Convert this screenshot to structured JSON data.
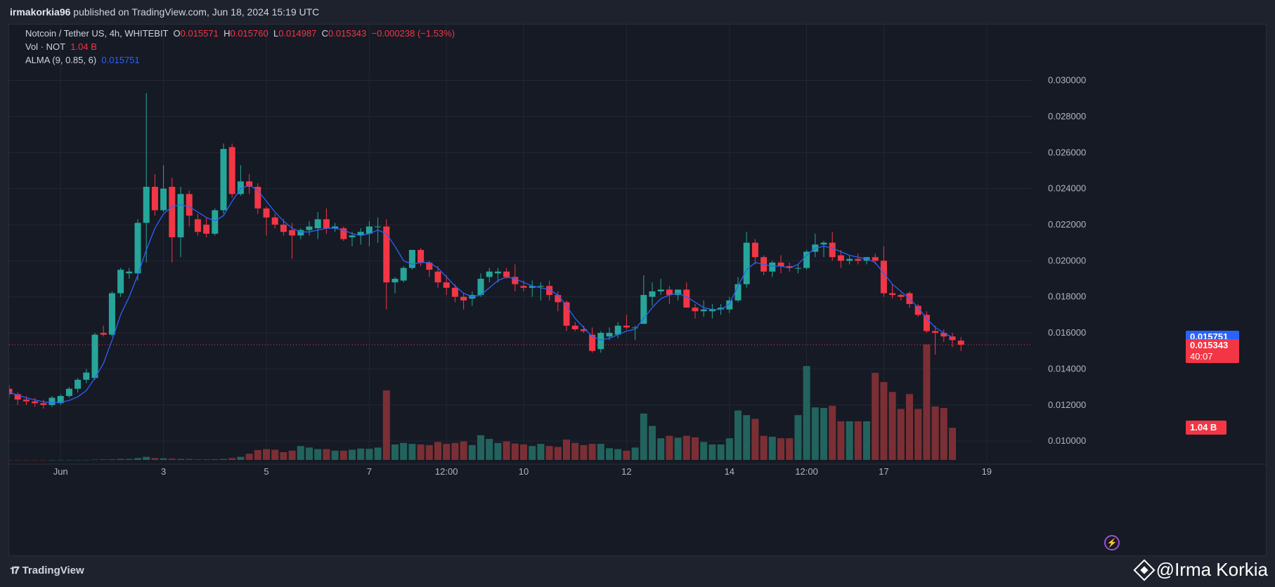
{
  "header": {
    "publisher": "irmakorkia96",
    "published_text": "published on TradingView.com, Jun 18, 2024 15:19 UTC"
  },
  "legend": {
    "symbol": "Notcoin / Tether US, 4h, WHITEBIT",
    "o_label": "O",
    "o_value": "0.015571",
    "h_label": "H",
    "h_value": "0.015760",
    "l_label": "L",
    "l_value": "0.014987",
    "c_label": "C",
    "c_value": "0.015343",
    "change": "−0.000238 (−1.53%)",
    "vol_label": "Vol · NOT",
    "vol_value": "1.04 B",
    "alma_label": "ALMA (9, 0.85, 6)",
    "alma_value": "0.015751"
  },
  "price_labels": {
    "alma": "0.015751",
    "last": "0.015343",
    "countdown": "40:07",
    "volume": "1.04 B"
  },
  "footer": {
    "brand": "TradingView",
    "brand_icon": "tradingview-logo-icon",
    "watermark": "@Irma Korkia",
    "watermark_icon": "binance-diamond-icon"
  },
  "colors": {
    "up": "#26a69a",
    "down": "#f23645",
    "alma": "#2962ff",
    "up_volume": "#22635d",
    "down_volume": "#7b2f35",
    "background": "#161a25",
    "grid": "#232733"
  },
  "chart_data": {
    "type": "candlestick",
    "title": "Notcoin / Tether US, 4h, WHITEBIT",
    "ylim": [
      0.0095,
      0.0315
    ],
    "y_ticks": [
      "0.030000",
      "0.028000",
      "0.026000",
      "0.024000",
      "0.022000",
      "0.020000",
      "0.018000",
      "0.016000",
      "0.014000",
      "0.012000",
      "0.010000"
    ],
    "x_ticks": [
      {
        "label": "Jun",
        "index": 6
      },
      {
        "label": "3",
        "index": 18
      },
      {
        "label": "5",
        "index": 30
      },
      {
        "label": "7",
        "index": 42
      },
      {
        "label": "12:00",
        "index": 51
      },
      {
        "label": "10",
        "index": 60
      },
      {
        "label": "12",
        "index": 72
      },
      {
        "label": "14",
        "index": 84
      },
      {
        "label": "12:00",
        "index": 93
      },
      {
        "label": "17",
        "index": 102
      },
      {
        "label": "19",
        "index": 114
      }
    ],
    "grid": true,
    "candles": [
      [
        0.0129,
        0.0131,
        0.0124,
        0.0126
      ],
      [
        0.0126,
        0.0127,
        0.012,
        0.0123
      ],
      [
        0.0123,
        0.0125,
        0.012,
        0.0122
      ],
      [
        0.0122,
        0.0124,
        0.0119,
        0.0121
      ],
      [
        0.0121,
        0.0123,
        0.0118,
        0.012
      ],
      [
        0.012,
        0.0125,
        0.0119,
        0.0124
      ],
      [
        0.0121,
        0.0126,
        0.012,
        0.0125
      ],
      [
        0.0125,
        0.013,
        0.0124,
        0.0129
      ],
      [
        0.0129,
        0.0135,
        0.0127,
        0.0134
      ],
      [
        0.0134,
        0.014,
        0.0132,
        0.0138
      ],
      [
        0.0135,
        0.016,
        0.0134,
        0.0159
      ],
      [
        0.016,
        0.0164,
        0.0158,
        0.0159
      ],
      [
        0.0159,
        0.0183,
        0.0158,
        0.0182
      ],
      [
        0.0182,
        0.0196,
        0.018,
        0.0195
      ],
      [
        0.0193,
        0.0196,
        0.019,
        0.0194
      ],
      [
        0.0193,
        0.0223,
        0.0189,
        0.0221
      ],
      [
        0.0221,
        0.0293,
        0.0199,
        0.0241
      ],
      [
        0.0241,
        0.0248,
        0.0225,
        0.0228
      ],
      [
        0.0228,
        0.0253,
        0.0227,
        0.024
      ],
      [
        0.0241,
        0.0246,
        0.0199,
        0.0213
      ],
      [
        0.0213,
        0.0241,
        0.0202,
        0.0237
      ],
      [
        0.0237,
        0.0239,
        0.0219,
        0.0225
      ],
      [
        0.0223,
        0.0226,
        0.0214,
        0.0216
      ],
      [
        0.022,
        0.0224,
        0.0213,
        0.0215
      ],
      [
        0.0215,
        0.0229,
        0.0214,
        0.0228
      ],
      [
        0.0228,
        0.0265,
        0.0226,
        0.0262
      ],
      [
        0.0263,
        0.0265,
        0.0235,
        0.0237
      ],
      [
        0.0237,
        0.0253,
        0.0236,
        0.0244
      ],
      [
        0.0244,
        0.0248,
        0.0237,
        0.0241
      ],
      [
        0.0241,
        0.0243,
        0.0226,
        0.0229
      ],
      [
        0.0229,
        0.023,
        0.0214,
        0.0224
      ],
      [
        0.0224,
        0.0226,
        0.0218,
        0.022
      ],
      [
        0.022,
        0.0223,
        0.0214,
        0.0216
      ],
      [
        0.0217,
        0.0221,
        0.0201,
        0.0214
      ],
      [
        0.0214,
        0.0218,
        0.0212,
        0.0217
      ],
      [
        0.0217,
        0.0222,
        0.0214,
        0.0219
      ],
      [
        0.0218,
        0.0227,
        0.0212,
        0.0223
      ],
      [
        0.0223,
        0.0229,
        0.0215,
        0.0218
      ],
      [
        0.0218,
        0.0221,
        0.0216,
        0.0219
      ],
      [
        0.0218,
        0.0219,
        0.0211,
        0.0212
      ],
      [
        0.0213,
        0.0216,
        0.0208,
        0.0214
      ],
      [
        0.0214,
        0.0218,
        0.0209,
        0.0216
      ],
      [
        0.0215,
        0.0222,
        0.0208,
        0.0219
      ],
      [
        0.0219,
        0.0224,
        0.021,
        0.0219
      ],
      [
        0.0219,
        0.0223,
        0.0173,
        0.0188
      ],
      [
        0.0188,
        0.0191,
        0.0182,
        0.019
      ],
      [
        0.0189,
        0.0197,
        0.0188,
        0.0196
      ],
      [
        0.0196,
        0.0206,
        0.0195,
        0.0206
      ],
      [
        0.0206,
        0.0207,
        0.0197,
        0.0199
      ],
      [
        0.0199,
        0.02,
        0.0191,
        0.0195
      ],
      [
        0.0194,
        0.0197,
        0.0185,
        0.0188
      ],
      [
        0.0188,
        0.0192,
        0.0181,
        0.0185
      ],
      [
        0.0185,
        0.0187,
        0.0177,
        0.018
      ],
      [
        0.018,
        0.0182,
        0.0173,
        0.0178
      ],
      [
        0.0179,
        0.0183,
        0.0175,
        0.0181
      ],
      [
        0.0181,
        0.0193,
        0.018,
        0.019
      ],
      [
        0.0191,
        0.0196,
        0.0188,
        0.0194
      ],
      [
        0.0193,
        0.0196,
        0.0188,
        0.0194
      ],
      [
        0.0194,
        0.0196,
        0.019,
        0.0191
      ],
      [
        0.0191,
        0.0198,
        0.0183,
        0.0187
      ],
      [
        0.0186,
        0.0189,
        0.0183,
        0.0185
      ],
      [
        0.0185,
        0.0189,
        0.018,
        0.0186
      ],
      [
        0.0186,
        0.0188,
        0.0178,
        0.0186
      ],
      [
        0.0186,
        0.0189,
        0.0178,
        0.0181
      ],
      [
        0.0181,
        0.0183,
        0.0172,
        0.0177
      ],
      [
        0.0177,
        0.0178,
        0.0161,
        0.0164
      ],
      [
        0.0164,
        0.0166,
        0.0161,
        0.0162
      ],
      [
        0.0162,
        0.0164,
        0.016,
        0.0161
      ],
      [
        0.0159,
        0.0163,
        0.0149,
        0.015
      ],
      [
        0.0151,
        0.0161,
        0.0149,
        0.016
      ],
      [
        0.0158,
        0.0163,
        0.0156,
        0.016
      ],
      [
        0.0159,
        0.0166,
        0.0157,
        0.0164
      ],
      [
        0.0164,
        0.017,
        0.0162,
        0.0163
      ],
      [
        0.0163,
        0.0164,
        0.0156,
        0.0163
      ],
      [
        0.0165,
        0.0192,
        0.0165,
        0.0181
      ],
      [
        0.018,
        0.0188,
        0.0175,
        0.0183
      ],
      [
        0.0183,
        0.019,
        0.0181,
        0.0184
      ],
      [
        0.0184,
        0.0186,
        0.0176,
        0.0181
      ],
      [
        0.0181,
        0.0184,
        0.0178,
        0.0184
      ],
      [
        0.0184,
        0.0188,
        0.0176,
        0.0174
      ],
      [
        0.0174,
        0.0176,
        0.0168,
        0.0172
      ],
      [
        0.0172,
        0.0178,
        0.0169,
        0.0173
      ],
      [
        0.0172,
        0.0176,
        0.0168,
        0.0173
      ],
      [
        0.0173,
        0.0176,
        0.017,
        0.0174
      ],
      [
        0.0173,
        0.018,
        0.0171,
        0.0178
      ],
      [
        0.0178,
        0.0191,
        0.0177,
        0.0187
      ],
      [
        0.0187,
        0.0216,
        0.0185,
        0.021
      ],
      [
        0.021,
        0.0212,
        0.0198,
        0.0202
      ],
      [
        0.0202,
        0.0203,
        0.0192,
        0.0194
      ],
      [
        0.0194,
        0.02,
        0.0191,
        0.0199
      ],
      [
        0.0199,
        0.0203,
        0.0193,
        0.0197
      ],
      [
        0.0197,
        0.0199,
        0.0194,
        0.0196
      ],
      [
        0.0196,
        0.0198,
        0.0193,
        0.0196
      ],
      [
        0.0196,
        0.0206,
        0.0195,
        0.0205
      ],
      [
        0.0205,
        0.0215,
        0.0202,
        0.0209
      ],
      [
        0.0209,
        0.0211,
        0.0202,
        0.021
      ],
      [
        0.021,
        0.0216,
        0.02,
        0.0202
      ],
      [
        0.0203,
        0.0206,
        0.0196,
        0.02
      ],
      [
        0.02,
        0.0203,
        0.0198,
        0.0201
      ],
      [
        0.0201,
        0.0204,
        0.0198,
        0.02
      ],
      [
        0.02,
        0.0202,
        0.0198,
        0.0202
      ],
      [
        0.0202,
        0.0204,
        0.0198,
        0.02
      ],
      [
        0.02,
        0.0208,
        0.018,
        0.0182
      ],
      [
        0.0182,
        0.0187,
        0.0179,
        0.0181
      ],
      [
        0.0181,
        0.0182,
        0.0178,
        0.018
      ],
      [
        0.0182,
        0.0183,
        0.0174,
        0.0176
      ],
      [
        0.0175,
        0.0176,
        0.0169,
        0.017
      ],
      [
        0.017,
        0.0172,
        0.016,
        0.0161
      ],
      [
        0.0161,
        0.0164,
        0.0148,
        0.016
      ],
      [
        0.016,
        0.0162,
        0.0155,
        0.0158
      ],
      [
        0.0158,
        0.016,
        0.0152,
        0.0156
      ],
      [
        0.01557,
        0.01576,
        0.01499,
        0.01534
      ]
    ],
    "volume": [
      0.0,
      0.0,
      0.0,
      0.0,
      0.0,
      0.0,
      0.0,
      0.0,
      0.0,
      0.0,
      0.01,
      0.02,
      0.02,
      0.03,
      0.03,
      0.06,
      0.1,
      0.06,
      0.05,
      0.04,
      0.03,
      0.03,
      0.02,
      0.02,
      0.02,
      0.03,
      0.06,
      0.1,
      0.2,
      0.32,
      0.35,
      0.33,
      0.25,
      0.3,
      0.45,
      0.4,
      0.35,
      0.35,
      0.3,
      0.3,
      0.33,
      0.37,
      0.36,
      0.4,
      2.25,
      0.5,
      0.55,
      0.52,
      0.5,
      0.48,
      0.58,
      0.52,
      0.55,
      0.6,
      0.48,
      0.8,
      0.68,
      0.55,
      0.6,
      0.53,
      0.5,
      0.45,
      0.52,
      0.45,
      0.42,
      0.66,
      0.55,
      0.48,
      0.52,
      0.52,
      0.38,
      0.35,
      0.3,
      0.4,
      1.5,
      1.1,
      0.7,
      0.78,
      0.72,
      0.78,
      0.73,
      0.58,
      0.5,
      0.5,
      0.7,
      1.6,
      1.45,
      1.33,
      0.78,
      0.75,
      0.7,
      0.7,
      1.45,
      3.04,
      1.7,
      1.68,
      1.75,
      1.25,
      1.25,
      1.25,
      1.25,
      2.82,
      2.52,
      2.2,
      1.65,
      2.13,
      1.65,
      3.74,
      1.73,
      1.68,
      1.04
    ],
    "alma": [
      0.0127,
      0.01255,
      0.0124,
      0.01228,
      0.01218,
      0.01212,
      0.01215,
      0.01225,
      0.01245,
      0.0128,
      0.0135,
      0.0143,
      0.0156,
      0.017,
      0.018,
      0.0192,
      0.0206,
      0.0218,
      0.0226,
      0.023,
      0.0231,
      0.023,
      0.0227,
      0.0224,
      0.0222,
      0.0225,
      0.0233,
      0.024,
      0.0242,
      0.0239,
      0.0233,
      0.0227,
      0.0222,
      0.0218,
      0.0216,
      0.0216,
      0.0217,
      0.0218,
      0.0218,
      0.0217,
      0.0215,
      0.0214,
      0.0215,
      0.0217,
      0.0215,
      0.0208,
      0.02,
      0.0198,
      0.0199,
      0.0199,
      0.0196,
      0.0191,
      0.0186,
      0.0182,
      0.018,
      0.0181,
      0.0185,
      0.0189,
      0.0191,
      0.019,
      0.0188,
      0.0186,
      0.0185,
      0.0184,
      0.0181,
      0.0175,
      0.0168,
      0.0163,
      0.0158,
      0.0156,
      0.0157,
      0.0159,
      0.0161,
      0.0162,
      0.0168,
      0.0174,
      0.0179,
      0.0181,
      0.0182,
      0.018,
      0.0177,
      0.0174,
      0.0173,
      0.0173,
      0.0176,
      0.0186,
      0.0195,
      0.0199,
      0.0198,
      0.0197,
      0.0197,
      0.0196,
      0.0198,
      0.0203,
      0.0207,
      0.0208,
      0.0207,
      0.0205,
      0.0203,
      0.0202,
      0.0201,
      0.0199,
      0.0193,
      0.0187,
      0.0183,
      0.0179,
      0.0174,
      0.0168,
      0.0163,
      0.016,
      0.01575
    ]
  }
}
